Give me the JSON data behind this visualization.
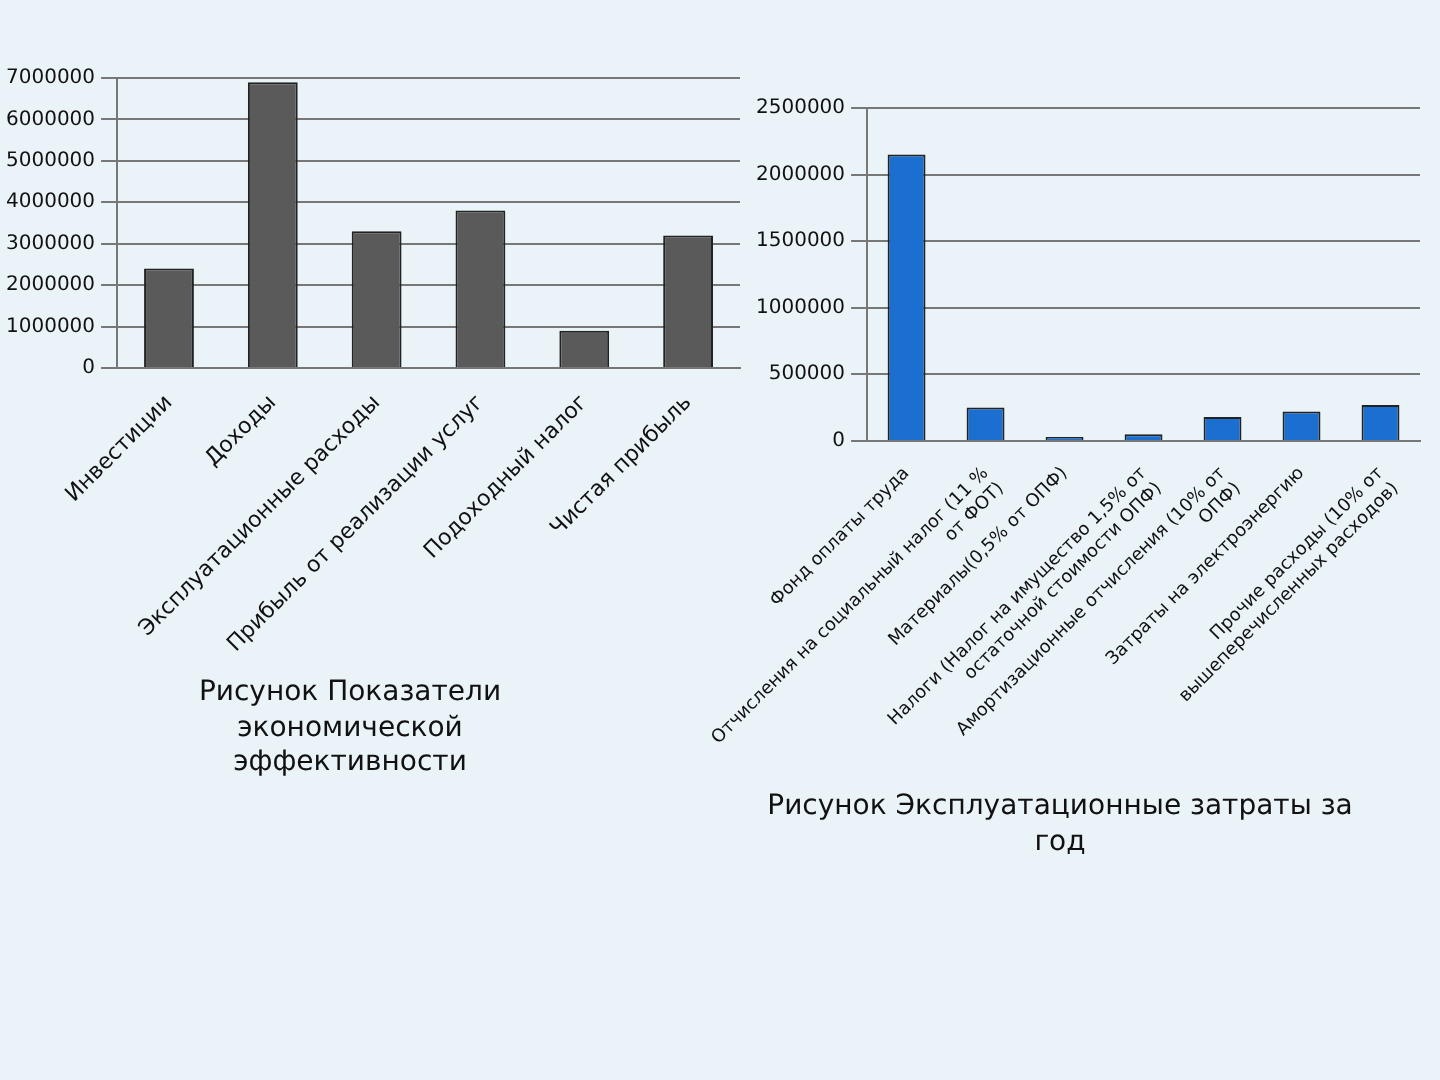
{
  "chart_data": [
    {
      "type": "bar",
      "categories": [
        "Инвестиции",
        "Доходы",
        "Эксплуатационные расходы",
        "Прибыль от реализации услуг",
        "Подоходный налог",
        "Чистая прибыль"
      ],
      "values": [
        2400000,
        6900000,
        3300000,
        3800000,
        900000,
        3200000
      ],
      "color": "#5a5a5a",
      "ylim": [
        0,
        7000000
      ],
      "yticks": [
        0,
        1000000,
        2000000,
        3000000,
        4000000,
        5000000,
        6000000,
        7000000
      ],
      "grid": "y",
      "annotations": [
        "Рисунок Показатели экономической эффективности"
      ]
    },
    {
      "type": "bar",
      "categories": [
        "Фонд оплаты труда",
        "Отчисления на социальный налог (11 % от ФОТ)",
        "Материалы(0,5% от ОПФ)",
        "Налоги (Налог на имущество 1,5% от остаточной стоимости ОПФ)",
        "Амортизационные отчисления (10% от ОПФ)",
        "Затраты на электроэнергию",
        "Прочие расходы (10% от вышеперечисленных расходов)"
      ],
      "values": [
        2150000,
        250000,
        30000,
        50000,
        180000,
        220000,
        270000
      ],
      "color": "#1a6fd0",
      "ylim": [
        0,
        2500000
      ],
      "yticks": [
        0,
        500000,
        1000000,
        1500000,
        2000000,
        2500000
      ],
      "grid": "y",
      "annotations": [
        "Рисунок Эксплуатационные затраты за год"
      ]
    }
  ]
}
